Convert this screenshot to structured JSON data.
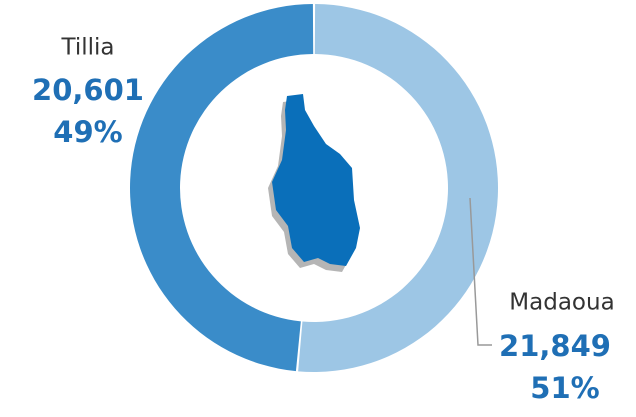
{
  "chart_data": {
    "type": "pie",
    "categories": [
      "Tillia",
      "Madaoua"
    ],
    "values": [
      20601,
      21849
    ],
    "value_labels": [
      "20,601",
      "21,849"
    ],
    "percents": [
      49,
      51
    ],
    "percent_labels": [
      "49%",
      "51%"
    ],
    "colors": [
      "#3a8cc9",
      "#9dc6e5"
    ]
  }
}
